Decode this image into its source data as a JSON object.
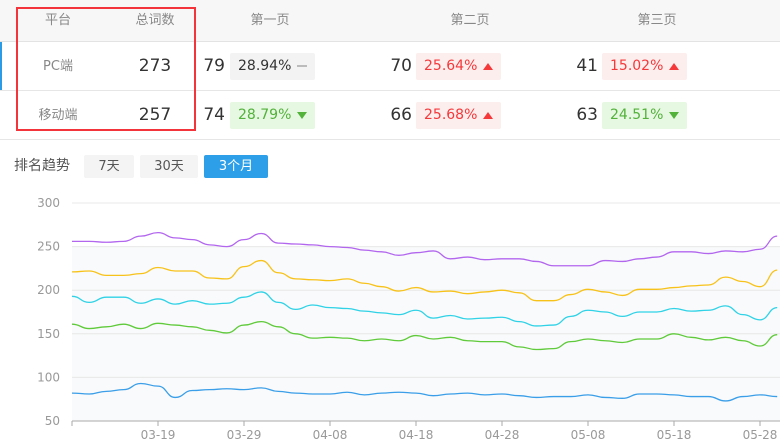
{
  "table": {
    "headers": [
      "平台",
      "总词数",
      "第一页",
      "第二页",
      "第三页"
    ],
    "rows": [
      {
        "platform": "PC端",
        "total": "273",
        "pages": [
          {
            "count": "79",
            "pct": "28.94%",
            "trend": "flat"
          },
          {
            "count": "70",
            "pct": "25.64%",
            "trend": "up"
          },
          {
            "count": "41",
            "pct": "15.02%",
            "trend": "up"
          }
        ]
      },
      {
        "platform": "移动端",
        "total": "257",
        "pages": [
          {
            "count": "74",
            "pct": "28.79%",
            "trend": "down"
          },
          {
            "count": "66",
            "pct": "25.68%",
            "trend": "up"
          },
          {
            "count": "63",
            "pct": "24.51%",
            "trend": "down"
          }
        ]
      }
    ]
  },
  "trend": {
    "label": "排名趋势",
    "ranges": [
      "7天",
      "30天",
      "3个月"
    ],
    "active_range": "3个月"
  },
  "colors": {
    "accent": "#2c9fe8",
    "up": "#f5383a",
    "down": "#52b23a",
    "highlight_box": "#f3343a"
  },
  "chart_data": {
    "type": "line",
    "ylim": [
      50,
      300
    ],
    "yticks": [
      50,
      100,
      150,
      200,
      250,
      300
    ],
    "xtick_labels": [
      "03-19",
      "03-29",
      "04-08",
      "04-18",
      "04-28",
      "05-08",
      "05-18",
      "05-28"
    ],
    "grid": true,
    "x": [
      "03-09",
      "03-11",
      "03-13",
      "03-15",
      "03-17",
      "03-19",
      "03-21",
      "03-23",
      "03-25",
      "03-27",
      "03-29",
      "03-31",
      "04-02",
      "04-04",
      "04-06",
      "04-08",
      "04-10",
      "04-12",
      "04-14",
      "04-16",
      "04-18",
      "04-20",
      "04-22",
      "04-24",
      "04-26",
      "04-28",
      "04-30",
      "05-02",
      "05-04",
      "05-06",
      "05-08",
      "05-10",
      "05-12",
      "05-14",
      "05-16",
      "05-18",
      "05-20",
      "05-22",
      "05-24",
      "05-26",
      "05-28",
      "05-30"
    ],
    "series": [
      {
        "color": "#b266ee",
        "values": [
          256,
          256,
          255,
          256,
          262,
          266,
          260,
          258,
          252,
          250,
          258,
          265,
          254,
          253,
          252,
          250,
          249,
          246,
          244,
          240,
          243,
          245,
          236,
          238,
          235,
          236,
          236,
          233,
          228,
          228,
          228,
          234,
          233,
          236,
          238,
          244,
          244,
          242,
          245,
          244,
          247,
          262
        ]
      },
      {
        "color": "#f7c21a",
        "values": [
          221,
          222,
          217,
          217,
          219,
          226,
          222,
          222,
          214,
          213,
          227,
          234,
          220,
          213,
          212,
          211,
          213,
          208,
          204,
          199,
          203,
          198,
          199,
          196,
          198,
          200,
          197,
          188,
          188,
          195,
          201,
          198,
          194,
          201,
          201,
          203,
          205,
          206,
          215,
          210,
          204,
          223
        ]
      },
      {
        "color": "#2fd2e6",
        "values": [
          193,
          186,
          192,
          192,
          185,
          190,
          184,
          188,
          184,
          185,
          192,
          198,
          186,
          178,
          183,
          180,
          179,
          176,
          174,
          172,
          177,
          168,
          171,
          167,
          168,
          169,
          164,
          159,
          160,
          170,
          177,
          175,
          170,
          175,
          175,
          179,
          176,
          177,
          182,
          172,
          166,
          180
        ]
      },
      {
        "color": "#5fca3a",
        "values": [
          161,
          156,
          158,
          161,
          156,
          162,
          160,
          158,
          154,
          151,
          160,
          164,
          158,
          150,
          145,
          146,
          145,
          142,
          144,
          142,
          148,
          144,
          146,
          142,
          141,
          141,
          135,
          132,
          133,
          141,
          144,
          142,
          140,
          144,
          144,
          150,
          146,
          143,
          146,
          142,
          136,
          149
        ]
      },
      {
        "color": "#3a9ee8",
        "values": [
          82,
          81,
          84,
          86,
          93,
          90,
          77,
          85,
          86,
          87,
          86,
          88,
          84,
          82,
          81,
          81,
          83,
          80,
          82,
          83,
          82,
          79,
          81,
          82,
          80,
          81,
          79,
          77,
          78,
          78,
          80,
          77,
          76,
          81,
          81,
          80,
          78,
          78,
          73,
          78,
          80,
          78
        ]
      }
    ]
  }
}
